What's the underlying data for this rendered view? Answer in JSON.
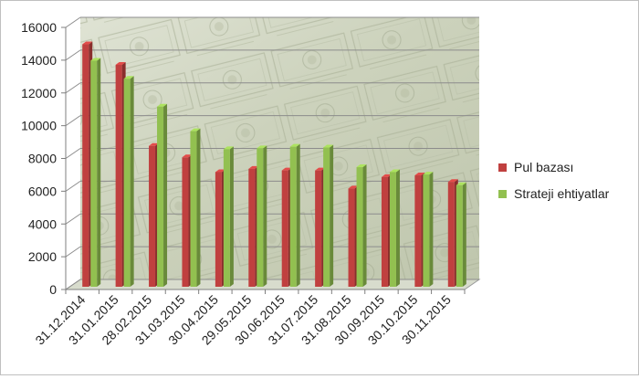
{
  "chart_data": {
    "type": "bar",
    "title": "",
    "xlabel": "",
    "ylabel": "",
    "ylim": [
      0,
      16000
    ],
    "yticks": [
      0,
      2000,
      4000,
      6000,
      8000,
      10000,
      12000,
      14000,
      16000
    ],
    "grid": true,
    "legend_position": "right",
    "categories": [
      "31.12.2014",
      "31.01.2015",
      "28.02.2015",
      "31.03.2015",
      "30.04.2015",
      "29.05.2015",
      "30.06.2015",
      "31.07.2015",
      "31.08.2015",
      "30.09.2015",
      "30.10.2015",
      "30.11.2015"
    ],
    "series": [
      {
        "name": "Pul bazası",
        "color": "#c0403f",
        "values": [
          14800,
          13550,
          8600,
          7900,
          7000,
          7200,
          7100,
          7100,
          6000,
          6700,
          6800,
          6400
        ]
      },
      {
        "name": "Strateji ehtiyatlar",
        "color": "#92c050",
        "values": [
          13800,
          12700,
          11000,
          9500,
          8400,
          8450,
          8550,
          8500,
          7300,
          7000,
          6850,
          6200
        ]
      }
    ]
  }
}
